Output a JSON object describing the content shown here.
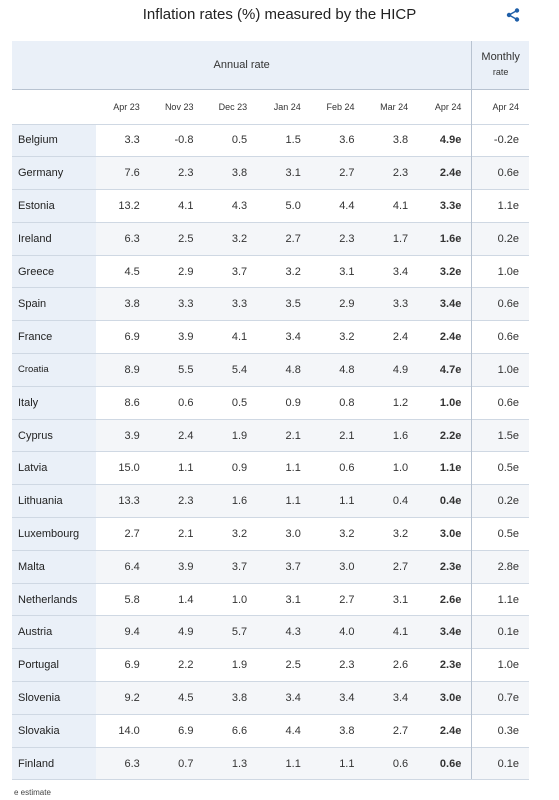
{
  "title": "Inflation rates (%) measured by the HICP",
  "share_icon": "share-icon",
  "header": {
    "annual_label": "Annual rate",
    "monthly_label": "Monthly",
    "monthly_sub": "rate",
    "columns": [
      "Apr 23",
      "Nov 23",
      "Dec 23",
      "Jan 24",
      "Feb 24",
      "Mar 24",
      "Apr 24",
      "Apr 24"
    ]
  },
  "rows": [
    {
      "country": "Belgium",
      "values": [
        "3.3",
        "-0.8",
        "0.5",
        "1.5",
        "3.6",
        "3.8",
        "4.9e",
        "-0.2e"
      ]
    },
    {
      "country": "Germany",
      "values": [
        "7.6",
        "2.3",
        "3.8",
        "3.1",
        "2.7",
        "2.3",
        "2.4e",
        "0.6e"
      ]
    },
    {
      "country": "Estonia",
      "values": [
        "13.2",
        "4.1",
        "4.3",
        "5.0",
        "4.4",
        "4.1",
        "3.3e",
        "1.1e"
      ]
    },
    {
      "country": "Ireland",
      "values": [
        "6.3",
        "2.5",
        "3.2",
        "2.7",
        "2.3",
        "1.7",
        "1.6e",
        "0.2e"
      ]
    },
    {
      "country": "Greece",
      "values": [
        "4.5",
        "2.9",
        "3.7",
        "3.2",
        "3.1",
        "3.4",
        "3.2e",
        "1.0e"
      ]
    },
    {
      "country": "Spain",
      "values": [
        "3.8",
        "3.3",
        "3.3",
        "3.5",
        "2.9",
        "3.3",
        "3.4e",
        "0.6e"
      ]
    },
    {
      "country": "France",
      "values": [
        "6.9",
        "3.9",
        "4.1",
        "3.4",
        "3.2",
        "2.4",
        "2.4e",
        "0.6e"
      ]
    },
    {
      "country": "Croatia",
      "values": [
        "8.9",
        "5.5",
        "5.4",
        "4.8",
        "4.8",
        "4.9",
        "4.7e",
        "1.0e"
      ]
    },
    {
      "country": "Italy",
      "values": [
        "8.6",
        "0.6",
        "0.5",
        "0.9",
        "0.8",
        "1.2",
        "1.0e",
        "0.6e"
      ]
    },
    {
      "country": "Cyprus",
      "values": [
        "3.9",
        "2.4",
        "1.9",
        "2.1",
        "2.1",
        "1.6",
        "2.2e",
        "1.5e"
      ]
    },
    {
      "country": "Latvia",
      "values": [
        "15.0",
        "1.1",
        "0.9",
        "1.1",
        "0.6",
        "1.0",
        "1.1e",
        "0.5e"
      ]
    },
    {
      "country": "Lithuania",
      "values": [
        "13.3",
        "2.3",
        "1.6",
        "1.1",
        "1.1",
        "0.4",
        "0.4e",
        "0.2e"
      ]
    },
    {
      "country": "Luxembourg",
      "values": [
        "2.7",
        "2.1",
        "3.2",
        "3.0",
        "3.2",
        "3.2",
        "3.0e",
        "0.5e"
      ]
    },
    {
      "country": "Malta",
      "values": [
        "6.4",
        "3.9",
        "3.7",
        "3.7",
        "3.0",
        "2.7",
        "2.3e",
        "2.8e"
      ]
    },
    {
      "country": "Netherlands",
      "values": [
        "5.8",
        "1.4",
        "1.0",
        "3.1",
        "2.7",
        "3.1",
        "2.6e",
        "1.1e"
      ]
    },
    {
      "country": "Austria",
      "values": [
        "9.4",
        "4.9",
        "5.7",
        "4.3",
        "4.0",
        "4.1",
        "3.4e",
        "0.1e"
      ]
    },
    {
      "country": "Portugal",
      "values": [
        "6.9",
        "2.2",
        "1.9",
        "2.5",
        "2.3",
        "2.6",
        "2.3e",
        "1.0e"
      ]
    },
    {
      "country": "Slovenia",
      "values": [
        "9.2",
        "4.5",
        "3.8",
        "3.4",
        "3.4",
        "3.4",
        "3.0e",
        "0.7e"
      ]
    },
    {
      "country": "Slovakia",
      "values": [
        "14.0",
        "6.9",
        "6.6",
        "4.4",
        "3.8",
        "2.7",
        "2.4e",
        "0.3e"
      ]
    },
    {
      "country": "Finland",
      "values": [
        "6.3",
        "0.7",
        "1.3",
        "1.1",
        "1.1",
        "0.6",
        "0.6e",
        "0.1e"
      ]
    }
  ],
  "footnote": "e estimate"
}
